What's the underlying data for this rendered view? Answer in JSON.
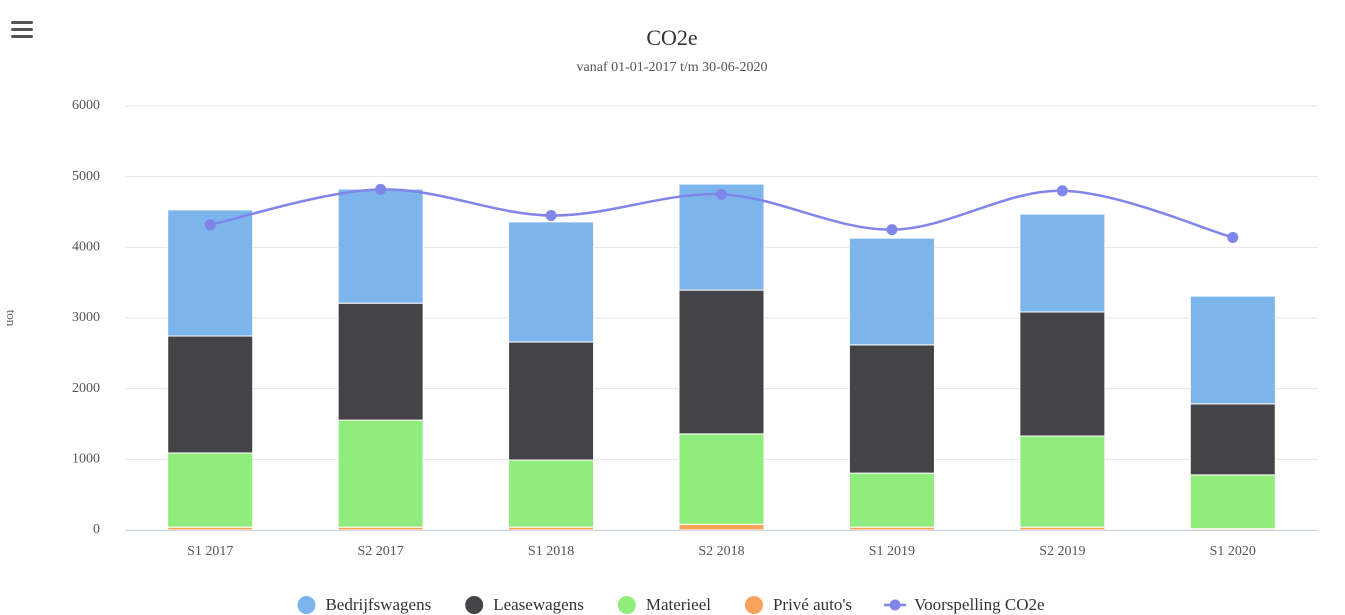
{
  "chart_data": {
    "type": "bar",
    "stacked": true,
    "title": "CO2e",
    "subtitle": "vanaf 01-01-2017 t/m 30-06-2020",
    "y_label": "ton",
    "categories": [
      "S1 2017",
      "S2 2017",
      "S1 2018",
      "S2 2018",
      "S1 2019",
      "S2 2019",
      "S1 2020"
    ],
    "ylim": [
      0,
      6000
    ],
    "yticks": [
      0,
      1000,
      2000,
      3000,
      4000,
      5000,
      6000
    ],
    "grid": true,
    "legend": "bottom",
    "series": [
      {
        "name": "Privé auto's",
        "color": "#f7a35c",
        "values": [
          40,
          40,
          40,
          80,
          40,
          40,
          20
        ]
      },
      {
        "name": "Materieel",
        "color": "#90ed7d",
        "values": [
          1050,
          1515,
          950,
          1280,
          765,
          1290,
          760
        ]
      },
      {
        "name": "Leasewagens",
        "color": "#434348",
        "values": [
          1655,
          1655,
          1670,
          2035,
          1815,
          1755,
          1005
        ]
      },
      {
        "name": "Bedrijfswagens",
        "color": "#7cb5ec",
        "values": [
          1785,
          1615,
          1700,
          1500,
          1510,
          1385,
          1525
        ]
      },
      {
        "name": "Voorspelling CO2e",
        "color": "#8085e9",
        "type": "line",
        "values": [
          4320,
          4820,
          4450,
          4750,
          4250,
          4800,
          4140
        ]
      }
    ]
  }
}
